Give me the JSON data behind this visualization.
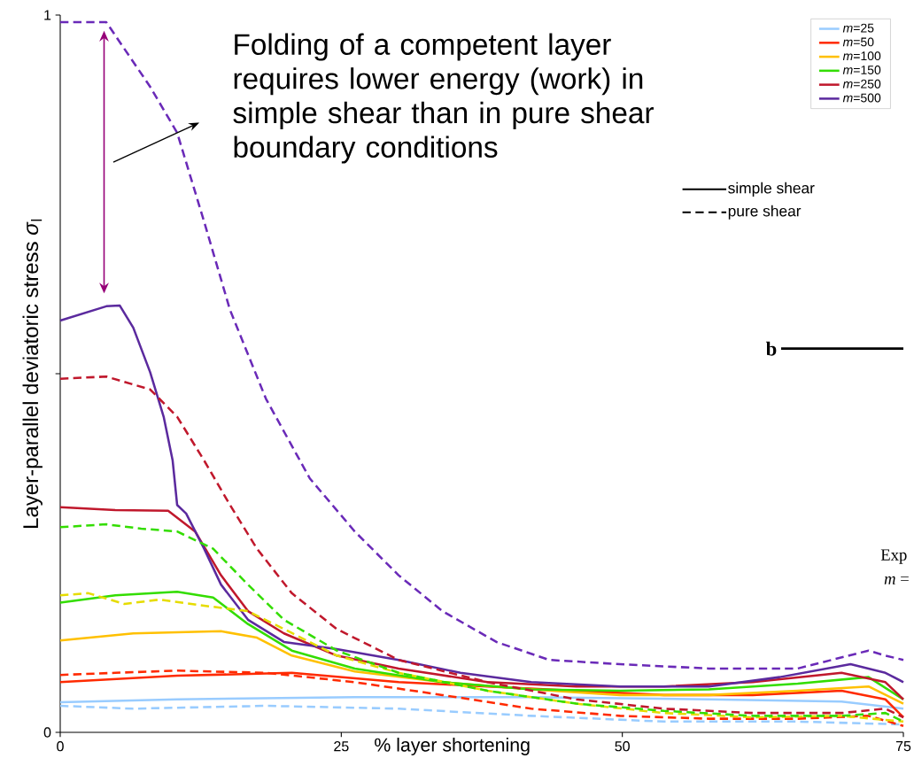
{
  "chart_data": {
    "type": "line",
    "xlabel": "% layer shortening",
    "ylabel": "Layer-parallel deviatoric stress *σ*$_{l}$",
    "xlim": [
      0,
      75
    ],
    "xticks": [
      0,
      25,
      50,
      75
    ],
    "ylim": [
      0,
      1
    ],
    "yticks": [
      0,
      {
        "value": 0.5,
        "label": null
      },
      1
    ],
    "legend": "top right",
    "grid": false,
    "annotations": [
      "Folding of a competent layer requires lower energy (work) in simple shear than in pure shear boundary conditions",
      "simple shear",
      "pure shear",
      "b",
      "Exp",
      "*m* ="
    ],
    "series": [
      {
        "name": "*m*=25",
        "color": "#99ccff",
        "line_style": "solid",
        "x": [
          0,
          10.4,
          26.2,
          41.9,
          57.7,
          69.5,
          75
        ],
        "values": [
          0.042,
          0.046,
          0.049,
          0.049,
          0.046,
          0.043,
          0.033
        ]
      },
      {
        "name": "*m*=50",
        "color": "#ff2a00",
        "line_style": "solid",
        "x": [
          0,
          10.4,
          20.6,
          30.1,
          38,
          45.9,
          53.7,
          61.6,
          69.5,
          73.4,
          75
        ],
        "values": [
          0.07,
          0.079,
          0.083,
          0.07,
          0.064,
          0.058,
          0.052,
          0.052,
          0.058,
          0.046,
          0.021
        ]
      },
      {
        "name": "*m*=100",
        "color": "#ffc000",
        "line_style": "solid",
        "x": [
          0,
          6.5,
          14.3,
          17.5,
          20.6,
          26.2,
          34,
          41.9,
          49.8,
          57.7,
          65.6,
          71.9,
          75
        ],
        "values": [
          0.128,
          0.138,
          0.141,
          0.132,
          0.107,
          0.085,
          0.07,
          0.06,
          0.052,
          0.052,
          0.058,
          0.064,
          0.04
        ]
      },
      {
        "name": "*m*=150",
        "color": "#33dd00",
        "line_style": "solid",
        "x": [
          0,
          4.9,
          10.4,
          13.6,
          16.7,
          20.6,
          26.2,
          34,
          41.9,
          49.8,
          57.7,
          65.6,
          71.9,
          75
        ],
        "values": [
          0.181,
          0.191,
          0.196,
          0.188,
          0.151,
          0.114,
          0.089,
          0.07,
          0.06,
          0.058,
          0.06,
          0.068,
          0.077,
          0.046
        ]
      },
      {
        "name": "*m*=250",
        "color": "#c0182c",
        "line_style": "solid",
        "x": [
          0,
          4.9,
          9.6,
          12,
          14.3,
          16.7,
          19.9,
          24.6,
          30.1,
          38,
          45.9,
          53.7,
          61.6,
          69.5,
          73.4,
          75
        ],
        "values": [
          0.314,
          0.31,
          0.309,
          0.28,
          0.219,
          0.169,
          0.138,
          0.107,
          0.089,
          0.07,
          0.064,
          0.064,
          0.07,
          0.083,
          0.07,
          0.046
        ]
      },
      {
        "name": "*m*=500",
        "color": "#5b2a9e",
        "line_style": "solid",
        "x": [
          0,
          4.1,
          5.3,
          6.5,
          8,
          9.2,
          10,
          10.4,
          11.2,
          12.8,
          14.3,
          16.7,
          19.9,
          24.6,
          30.1,
          35.6,
          41.9,
          49.8,
          57.7,
          64,
          70.3,
          73.4,
          75
        ],
        "values": [
          0.574,
          0.594,
          0.595,
          0.564,
          0.502,
          0.44,
          0.379,
          0.317,
          0.305,
          0.256,
          0.206,
          0.157,
          0.126,
          0.116,
          0.101,
          0.083,
          0.07,
          0.064,
          0.064,
          0.077,
          0.095,
          0.083,
          0.07
        ]
      },
      {
        "color": "#99ccff",
        "line_style": "dashed",
        "x": [
          0,
          6.5,
          18.3,
          30.1,
          41.9,
          53.7,
          65.6,
          75
        ],
        "values": [
          0.037,
          0.033,
          0.037,
          0.033,
          0.023,
          0.015,
          0.015,
          0.011
        ]
      },
      {
        "color": "#ff2a00",
        "line_style": "dashed",
        "x": [
          0,
          4.9,
          10.4,
          18.3,
          26.2,
          34,
          41.9,
          49.8,
          57.7,
          65.6,
          71.9,
          75
        ],
        "values": [
          0.08,
          0.083,
          0.086,
          0.083,
          0.07,
          0.052,
          0.033,
          0.023,
          0.019,
          0.019,
          0.023,
          0.009
        ]
      },
      {
        "color": "#e6dc00",
        "line_style": "dashed",
        "x": [
          0,
          2.5,
          5.7,
          8.8,
          13.6,
          16.7,
          19.9,
          24.6,
          30.1,
          38,
          45.9,
          53.7,
          61.6,
          69.5,
          75
        ],
        "values": [
          0.191,
          0.194,
          0.179,
          0.185,
          0.175,
          0.169,
          0.144,
          0.107,
          0.083,
          0.058,
          0.04,
          0.027,
          0.021,
          0.023,
          0.015
        ]
      },
      {
        "color": "#33dd00",
        "line_style": "dashed",
        "x": [
          0,
          4.1,
          7.2,
          10.4,
          13.6,
          16.7,
          19.9,
          24.6,
          30.1,
          38,
          45.9,
          53.7,
          61.6,
          69.5,
          73.4,
          75
        ],
        "values": [
          0.286,
          0.29,
          0.284,
          0.28,
          0.256,
          0.206,
          0.157,
          0.114,
          0.083,
          0.058,
          0.04,
          0.03,
          0.023,
          0.023,
          0.027,
          0.015
        ]
      },
      {
        "color": "#c0182c",
        "line_style": "dashed",
        "x": [
          0,
          4.1,
          8,
          10.4,
          12.8,
          15.1,
          17.5,
          20.6,
          24.6,
          30.1,
          38,
          45.9,
          53.7,
          61.6,
          69.5,
          73.4,
          75
        ],
        "values": [
          0.493,
          0.496,
          0.478,
          0.44,
          0.379,
          0.317,
          0.256,
          0.194,
          0.144,
          0.101,
          0.07,
          0.046,
          0.033,
          0.027,
          0.027,
          0.033,
          0.021
        ]
      },
      {
        "color": "#6a2ab8",
        "line_style": "dashed",
        "x": [
          0,
          4.1,
          8,
          10.4,
          12.8,
          15.1,
          18.3,
          22.2,
          26.2,
          30.1,
          34,
          38.8,
          43.5,
          49.8,
          57.7,
          65.6,
          71.9,
          73.4,
          75
        ],
        "values": [
          0.99,
          0.99,
          0.9,
          0.836,
          0.712,
          0.589,
          0.465,
          0.354,
          0.28,
          0.219,
          0.169,
          0.126,
          0.101,
          0.095,
          0.089,
          0.089,
          0.114,
          0.107,
          0.101
        ]
      }
    ]
  }
}
